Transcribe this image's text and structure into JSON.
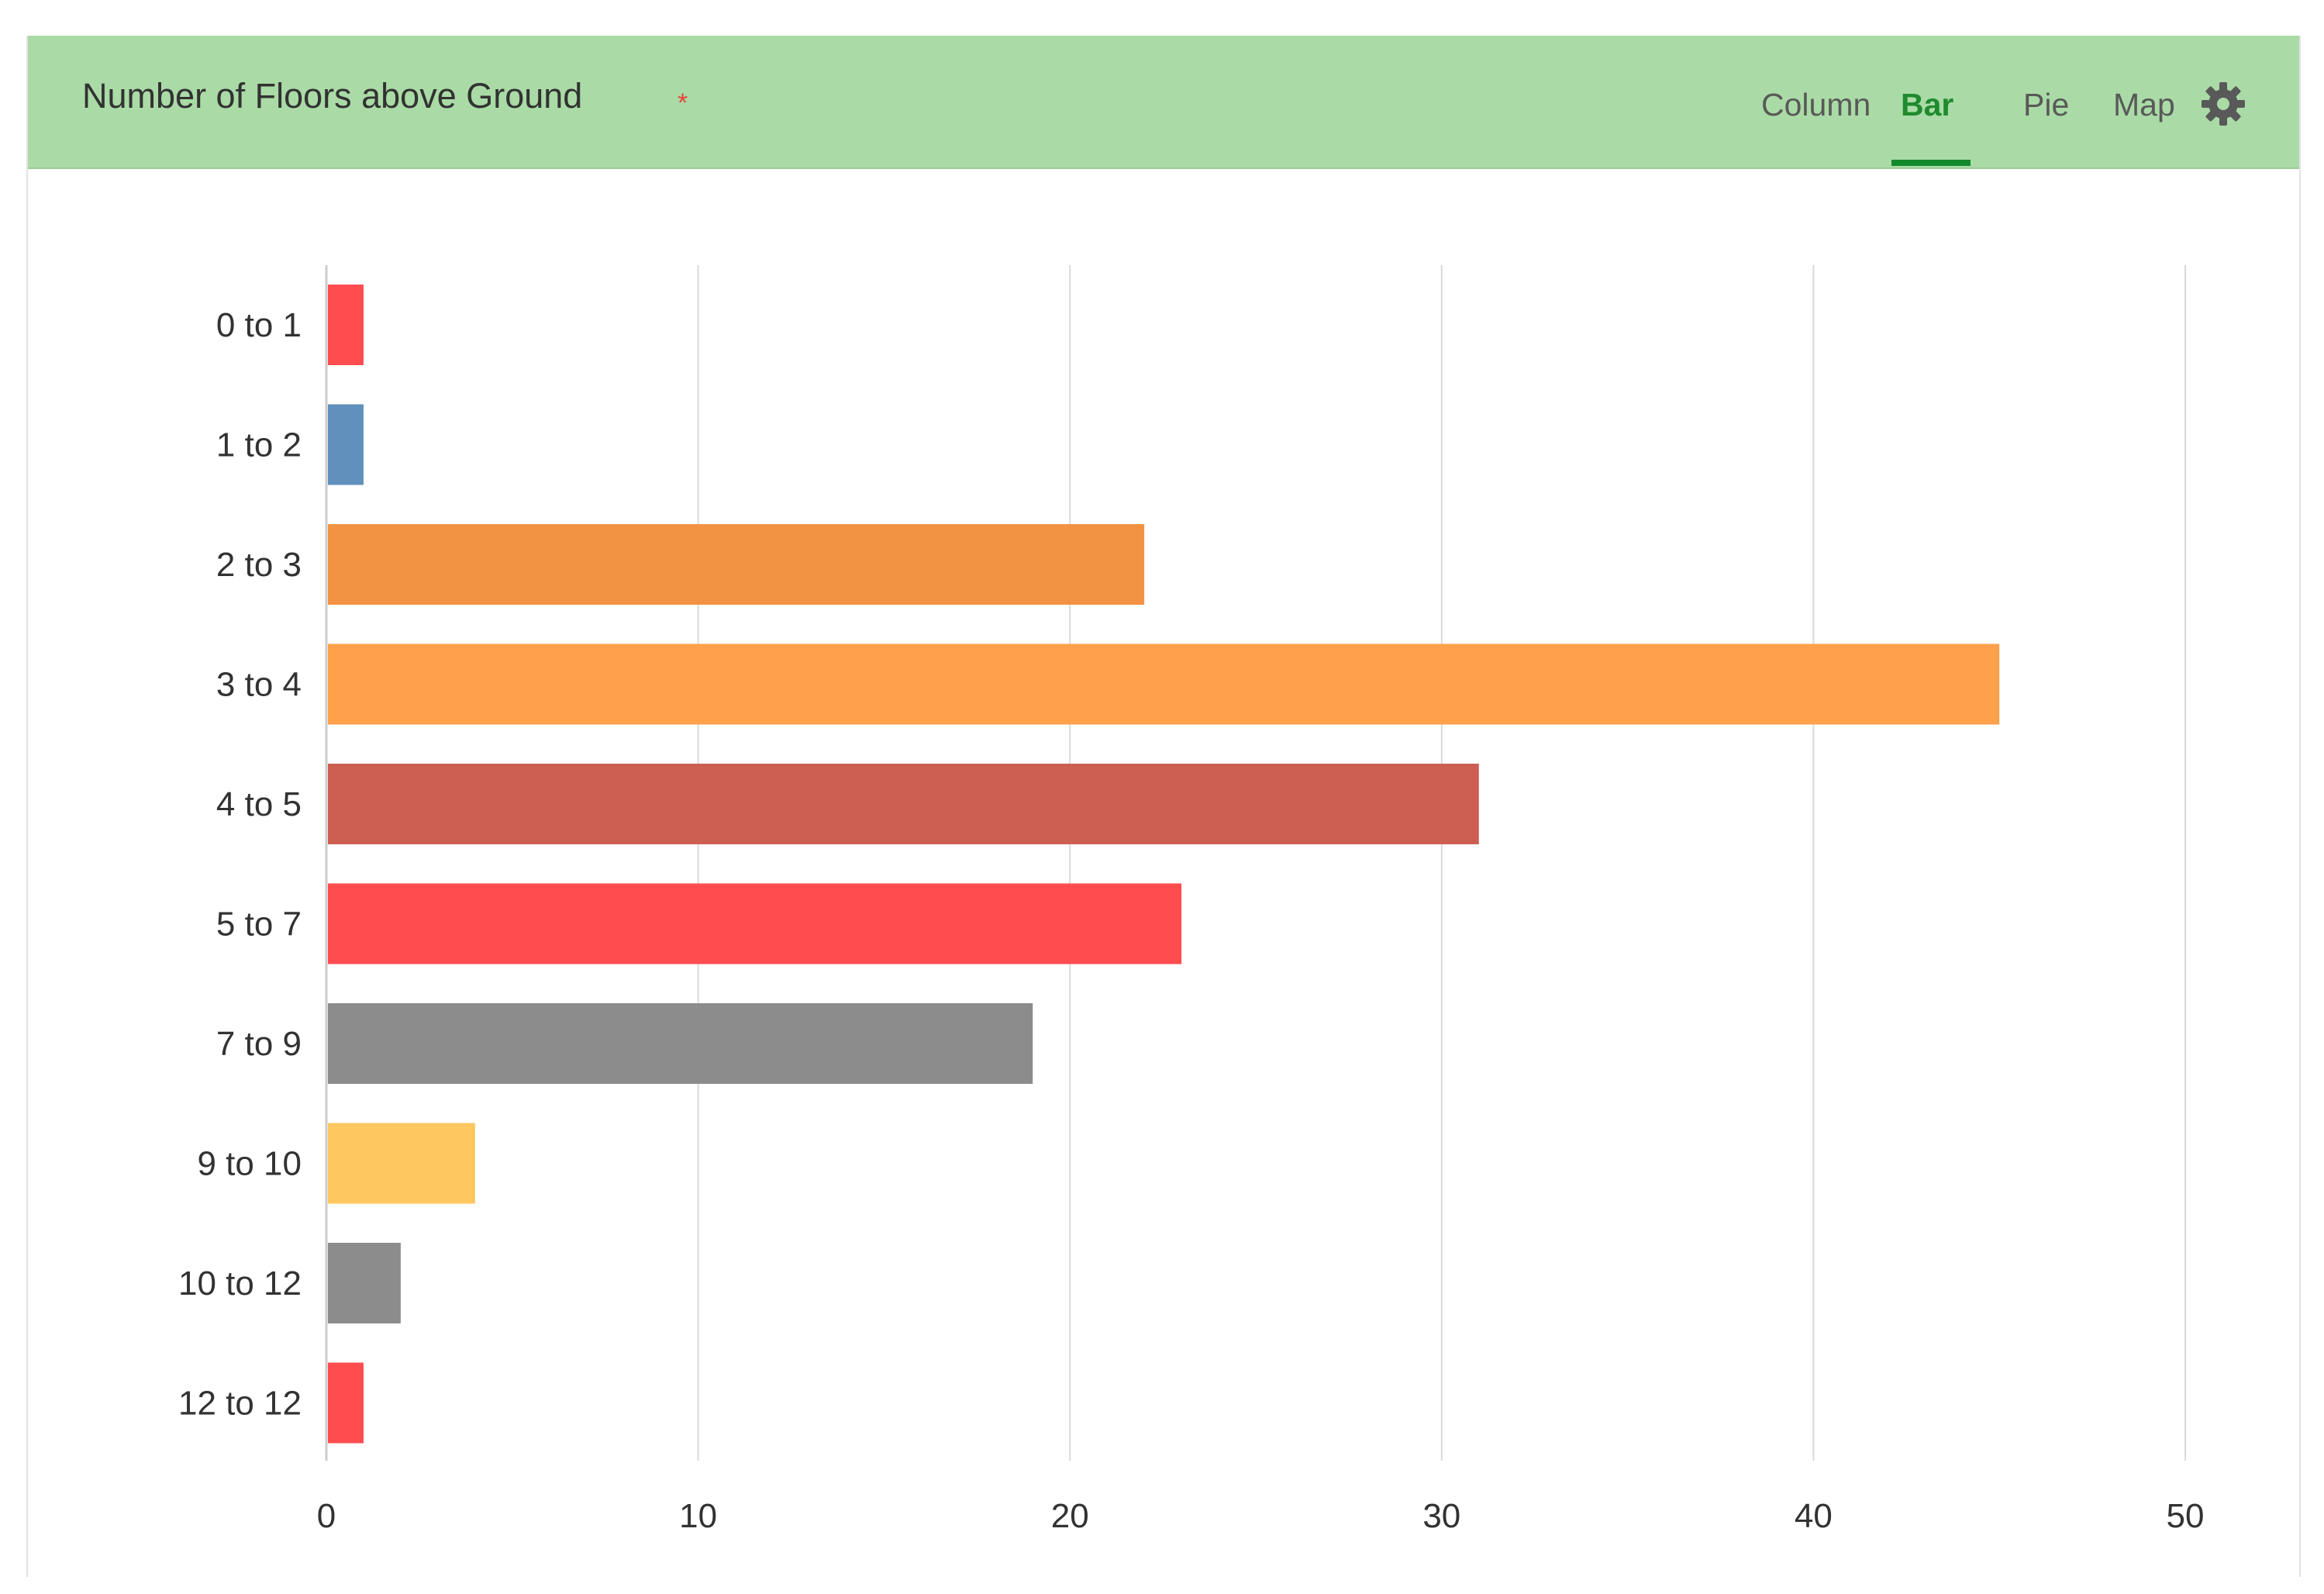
{
  "header": {
    "title": "Number of Floors above Ground",
    "required_marker": "*",
    "tabs": [
      {
        "label": "Column",
        "active": false
      },
      {
        "label": "Bar",
        "active": true
      },
      {
        "label": "Pie",
        "active": false
      },
      {
        "label": "Map",
        "active": false
      }
    ],
    "settings_icon": "gear-icon"
  },
  "colors": {
    "header_bg": "#aadba6",
    "active_tab": "#1f8a2e"
  },
  "chart_data": {
    "type": "bar",
    "orientation": "horizontal",
    "title": "Number of Floors above Ground",
    "xlabel": "",
    "ylabel": "",
    "categories": [
      "0 to 1",
      "1 to 2",
      "2 to 3",
      "3 to 4",
      "4 to 5",
      "5 to 7",
      "7 to 9",
      "9 to 10",
      "10 to 12",
      "12 to 12"
    ],
    "values": [
      1,
      1,
      22,
      45,
      31,
      23,
      19,
      4,
      2,
      1
    ],
    "bar_colors": [
      "#ff4d4f",
      "#6190bd",
      "#f29343",
      "#ffa04a",
      "#cc5f52",
      "#ff4d4f",
      "#8c8c8c",
      "#ffc75f",
      "#8c8c8c",
      "#ff4d4f"
    ],
    "xlim": [
      0,
      50
    ],
    "x_ticks": [
      0,
      10,
      20,
      30,
      40,
      50
    ],
    "grid": true
  }
}
